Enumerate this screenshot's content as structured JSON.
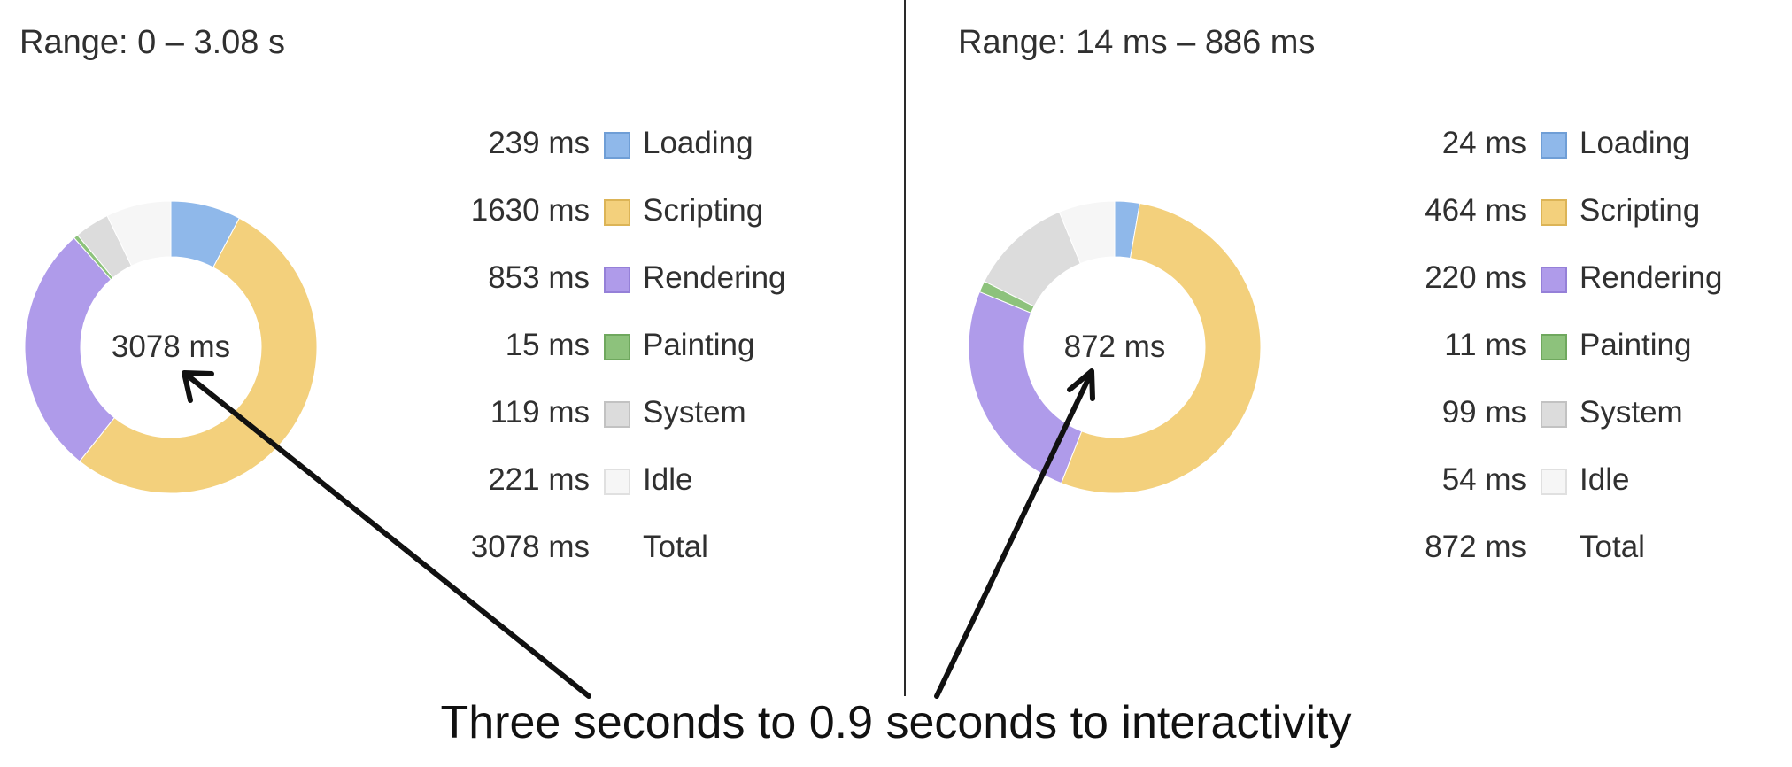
{
  "colors": {
    "loading": "#8fb8ea",
    "scripting": "#f3d07c",
    "rendering": "#af9bea",
    "painting": "#8dc27c",
    "system": "#dcdcdc",
    "idle": "#f6f6f6"
  },
  "panels": [
    {
      "range": "Range: 0 – 3.08 s",
      "center": "3078 ms",
      "legend": [
        {
          "value": "239 ms",
          "name": "Loading",
          "ms": 239,
          "color_key": "loading"
        },
        {
          "value": "1630 ms",
          "name": "Scripting",
          "ms": 1630,
          "color_key": "scripting"
        },
        {
          "value": "853 ms",
          "name": "Rendering",
          "ms": 853,
          "color_key": "rendering"
        },
        {
          "value": "15 ms",
          "name": "Painting",
          "ms": 15,
          "color_key": "painting"
        },
        {
          "value": "119 ms",
          "name": "System",
          "ms": 119,
          "color_key": "system"
        },
        {
          "value": "221 ms",
          "name": "Idle",
          "ms": 221,
          "color_key": "idle"
        }
      ],
      "total_value": "3078 ms",
      "total_label": "Total"
    },
    {
      "range": "Range: 14 ms – 886 ms",
      "center": "872 ms",
      "legend": [
        {
          "value": "24 ms",
          "name": "Loading",
          "ms": 24,
          "color_key": "loading"
        },
        {
          "value": "464 ms",
          "name": "Scripting",
          "ms": 464,
          "color_key": "scripting"
        },
        {
          "value": "220 ms",
          "name": "Rendering",
          "ms": 220,
          "color_key": "rendering"
        },
        {
          "value": "11 ms",
          "name": "Painting",
          "ms": 11,
          "color_key": "painting"
        },
        {
          "value": "99 ms",
          "name": "System",
          "ms": 99,
          "color_key": "system"
        },
        {
          "value": "54 ms",
          "name": "Idle",
          "ms": 54,
          "color_key": "idle"
        }
      ],
      "total_value": "872 ms",
      "total_label": "Total"
    }
  ],
  "caption": "Three seconds to 0.9 seconds to interactivity"
}
